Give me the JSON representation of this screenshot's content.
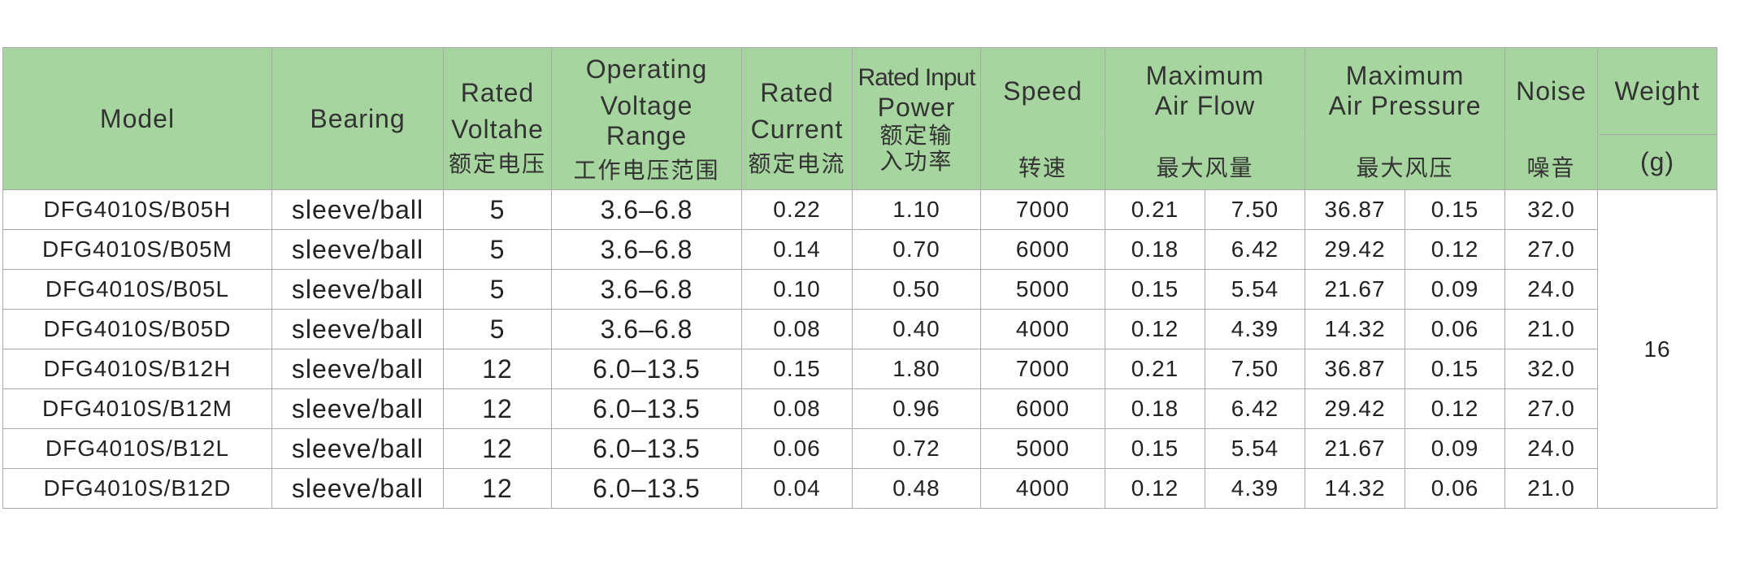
{
  "header": {
    "model": "Model",
    "bearing": "Bearing",
    "rated_voltage": {
      "en_line1": "Rated",
      "en_line2": "Voltahe",
      "zh": "额定电压"
    },
    "operating_voltage": {
      "en_line1": "Operating",
      "en_line2": "Voltage",
      "en_line3": "Range",
      "zh": "工作电压范围"
    },
    "rated_current": {
      "en_line1": "Rated",
      "en_line2": "Current",
      "zh": "额定电流"
    },
    "rated_input_power": {
      "en_line1": "Rated Input",
      "en_line2": "Power",
      "zh_line1": "额定输",
      "zh_line2": "入功率"
    },
    "speed": {
      "en": "Speed",
      "zh": "转速"
    },
    "max_air_flow": {
      "en_line1": "Maximum",
      "en_line2": "Air Flow",
      "zh": "最大风量"
    },
    "max_air_pressure": {
      "en_line1": "Maximum",
      "en_line2": "Air Pressure",
      "zh": "最大风压"
    },
    "noise": {
      "en": "Noise",
      "zh": "噪音"
    },
    "weight": {
      "en": "Weight",
      "unit": "(g)"
    }
  },
  "weight_value": "16",
  "rows": [
    {
      "model": "DFG4010S/B05H",
      "bearing": "sleeve/ball",
      "rated_voltage": "5",
      "voltage_range": "3.6–6.8",
      "current": "0.22",
      "power": "1.10",
      "speed": "7000",
      "airflow_a": "0.21",
      "airflow_b": "7.50",
      "pressure_a": "36.87",
      "pressure_b": "0.15",
      "noise": "32.0"
    },
    {
      "model": "DFG4010S/B05M",
      "bearing": "sleeve/ball",
      "rated_voltage": "5",
      "voltage_range": "3.6–6.8",
      "current": "0.14",
      "power": "0.70",
      "speed": "6000",
      "airflow_a": "0.18",
      "airflow_b": "6.42",
      "pressure_a": "29.42",
      "pressure_b": "0.12",
      "noise": "27.0"
    },
    {
      "model": "DFG4010S/B05L",
      "bearing": "sleeve/ball",
      "rated_voltage": "5",
      "voltage_range": "3.6–6.8",
      "current": "0.10",
      "power": "0.50",
      "speed": "5000",
      "airflow_a": "0.15",
      "airflow_b": "5.54",
      "pressure_a": "21.67",
      "pressure_b": "0.09",
      "noise": "24.0"
    },
    {
      "model": "DFG4010S/B05D",
      "bearing": "sleeve/ball",
      "rated_voltage": "5",
      "voltage_range": "3.6–6.8",
      "current": "0.08",
      "power": "0.40",
      "speed": "4000",
      "airflow_a": "0.12",
      "airflow_b": "4.39",
      "pressure_a": "14.32",
      "pressure_b": "0.06",
      "noise": "21.0"
    },
    {
      "model": "DFG4010S/B12H",
      "bearing": "sleeve/ball",
      "rated_voltage": "12",
      "voltage_range": "6.0–13.5",
      "current": "0.15",
      "power": "1.80",
      "speed": "7000",
      "airflow_a": "0.21",
      "airflow_b": "7.50",
      "pressure_a": "36.87",
      "pressure_b": "0.15",
      "noise": "32.0"
    },
    {
      "model": "DFG4010S/B12M",
      "bearing": "sleeve/ball",
      "rated_voltage": "12",
      "voltage_range": "6.0–13.5",
      "current": "0.08",
      "power": "0.96",
      "speed": "6000",
      "airflow_a": "0.18",
      "airflow_b": "6.42",
      "pressure_a": "29.42",
      "pressure_b": "0.12",
      "noise": "27.0"
    },
    {
      "model": "DFG4010S/B12L",
      "bearing": "sleeve/ball",
      "rated_voltage": "12",
      "voltage_range": "6.0–13.5",
      "current": "0.06",
      "power": "0.72",
      "speed": "5000",
      "airflow_a": "0.15",
      "airflow_b": "5.54",
      "pressure_a": "21.67",
      "pressure_b": "0.09",
      "noise": "24.0"
    },
    {
      "model": "DFG4010S/B12D",
      "bearing": "sleeve/ball",
      "rated_voltage": "12",
      "voltage_range": "6.0–13.5",
      "current": "0.04",
      "power": "0.48",
      "speed": "4000",
      "airflow_a": "0.12",
      "airflow_b": "4.39",
      "pressure_a": "14.32",
      "pressure_b": "0.06",
      "noise": "21.0"
    }
  ]
}
